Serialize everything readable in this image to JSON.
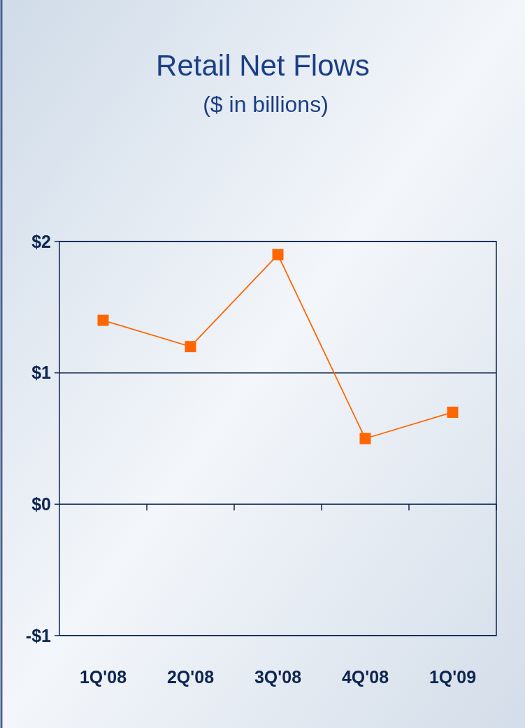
{
  "chart_data": {
    "type": "line",
    "title": "Retail Net Flows",
    "subtitle": "($ in billions)",
    "categories": [
      "1Q'08",
      "2Q'08",
      "3Q'08",
      "4Q'08",
      "1Q'09"
    ],
    "series": [
      {
        "color": "#ff6600",
        "values": [
          1.4,
          1.2,
          1.9,
          0.5,
          0.7
        ]
      }
    ],
    "ylim": [
      -1,
      2
    ],
    "yticks": [
      {
        "value": -1,
        "label": "-$1"
      },
      {
        "value": 0,
        "label": "$0"
      },
      {
        "value": 1,
        "label": "$1"
      },
      {
        "value": 2,
        "label": "$2"
      }
    ],
    "grid": "y",
    "marker": "square",
    "line_style": "solid"
  }
}
